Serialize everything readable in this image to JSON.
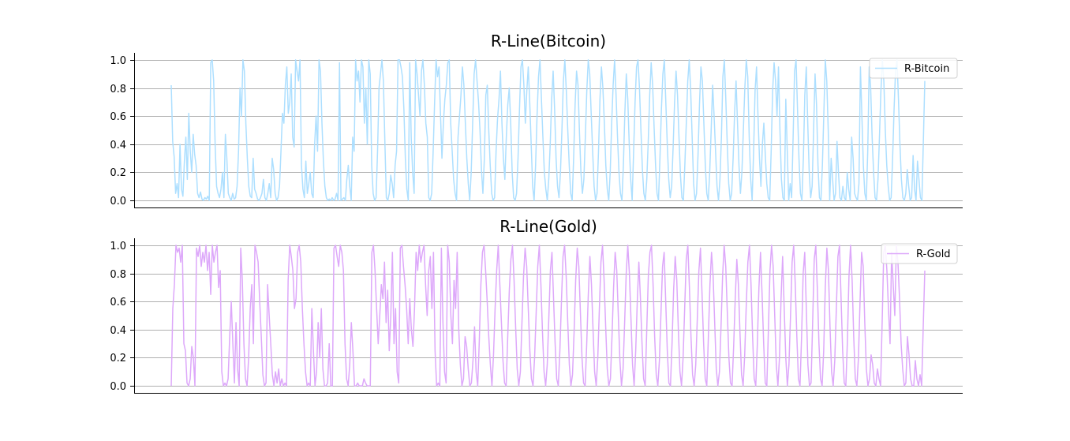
{
  "colors": {
    "bitcoin": "#ADDFFF",
    "gold": "#DDA8FA",
    "grid": "#b0b0b0"
  },
  "chart_data": [
    {
      "type": "line",
      "title": "R-Line(Bitcoin)",
      "xlabel": "",
      "ylabel": "",
      "ylim": [
        -0.05,
        1.05
      ],
      "yticks": [
        "0.0",
        "0.2",
        "0.4",
        "0.6",
        "0.8",
        "1.0"
      ],
      "grid": "horizontal",
      "legend_position": "top-right",
      "series": [
        {
          "name": "R-Bitcoin",
          "color": "#ADDFFF",
          "values": [
            0.82,
            0.42,
            0.31,
            0.05,
            0.12,
            0.02,
            0.4,
            0.08,
            0.03,
            0.28,
            0.45,
            0.15,
            0.62,
            0.35,
            0.2,
            0.47,
            0.33,
            0.25,
            0.05,
            0.02,
            0.06,
            0.01,
            0.0,
            0.02,
            0.01,
            0.03,
            0.0,
            0.98,
            1.0,
            0.85,
            0.4,
            0.1,
            0.05,
            0.02,
            0.08,
            0.2,
            0.02,
            0.47,
            0.3,
            0.05,
            0.02,
            0.0,
            0.05,
            0.01,
            0.02,
            0.1,
            0.35,
            0.8,
            0.6,
            1.0,
            0.92,
            0.55,
            0.3,
            0.1,
            0.03,
            0.02,
            0.3,
            0.08,
            0.05,
            0.01,
            0.0,
            0.02,
            0.05,
            0.15,
            0.02,
            0.0,
            0.05,
            0.12,
            0.02,
            0.3,
            0.22,
            0.05,
            0.0,
            0.02,
            0.1,
            0.35,
            0.62,
            0.55,
            0.82,
            0.95,
            0.62,
            0.7,
            0.9,
            0.45,
            0.38,
            1.0,
            0.92,
            0.85,
            1.0,
            0.25,
            0.08,
            0.02,
            0.28,
            0.05,
            0.12,
            0.2,
            0.05,
            0.02,
            0.4,
            0.6,
            0.35,
            1.0,
            0.92,
            0.55,
            0.28,
            0.1,
            0.02,
            0.0,
            0.01,
            0.0,
            0.02,
            0.0,
            0.01,
            0.05,
            0.0,
            0.98,
            0.0,
            0.01,
            0.02,
            0.0,
            0.15,
            0.25,
            0.1,
            0.0,
            0.45,
            0.35,
            1.0,
            0.85,
            0.92,
            0.7,
            1.0,
            0.95,
            0.55,
            0.8,
            0.4,
            1.0,
            0.9,
            0.25,
            0.05,
            0.0,
            0.02,
            0.35,
            0.8,
            0.9,
            1.0,
            0.85,
            0.42,
            0.02,
            0.0,
            0.05,
            0.18,
            0.12,
            0.02,
            0.25,
            0.35,
            1.0,
            1.0,
            0.95,
            0.88,
            0.65,
            0.3,
            0.08,
            0.0,
            0.98,
            0.45,
            0.2,
            0.05,
            1.0,
            0.9,
            0.75,
            0.6,
            0.92,
            1.0,
            0.82,
            0.55,
            0.45,
            0.02,
            0.0,
            0.05,
            0.35,
            0.7,
            1.0,
            0.88,
            0.95,
            0.62,
            0.3,
            0.55,
            0.72,
            0.82,
            0.98,
            1.0,
            0.55,
            0.35,
            0.15,
            0.05,
            0.0,
            0.45,
            0.6,
            0.75,
            0.95,
            0.82,
            0.55,
            0.3,
            0.12,
            0.0,
            0.2,
            0.55,
            0.9,
            1.0,
            0.85,
            0.7,
            0.5,
            0.22,
            0.05,
            0.3,
            0.75,
            0.82,
            0.5,
            0.25,
            0.05,
            0.0,
            0.02,
            0.35,
            0.58,
            0.72,
            0.92,
            0.55,
            0.3,
            0.15,
            0.45,
            0.68,
            0.8,
            0.55,
            0.2,
            0.02,
            0.0,
            0.05,
            0.3,
            0.65,
            0.95,
            1.0,
            0.82,
            0.55,
            0.78,
            0.95,
            0.7,
            0.4,
            0.1,
            0.0,
            0.25,
            0.6,
            0.88,
            1.0,
            0.72,
            0.45,
            0.2,
            0.08,
            0.0,
            0.15,
            0.4,
            0.72,
            0.92,
            0.65,
            0.3,
            0.1,
            0.02,
            0.2,
            0.5,
            0.85,
            1.0,
            0.78,
            0.5,
            0.25,
            0.05,
            0.0,
            0.3,
            0.68,
            0.92,
            0.82,
            0.48,
            0.2,
            0.05,
            0.15,
            0.45,
            0.78,
            1.0,
            0.9,
            0.62,
            0.35,
            0.1,
            0.0,
            0.05,
            0.35,
            0.72,
            0.95,
            0.8,
            0.55,
            0.25,
            0.08,
            0.0,
            0.2,
            0.55,
            0.82,
            1.0,
            0.75,
            0.45,
            0.2,
            0.05,
            0.0,
            0.25,
            0.62,
            0.9,
            0.72,
            0.4,
            0.15,
            0.0,
            0.35,
            0.7,
            0.95,
            1.0,
            0.8,
            0.5,
            0.22,
            0.05,
            0.0,
            0.15,
            0.42,
            0.75,
            0.98,
            0.82,
            0.52,
            0.25,
            0.05,
            0.0,
            0.3,
            0.65,
            0.9,
            1.0,
            0.7,
            0.4,
            0.15,
            0.02,
            0.1,
            0.38,
            0.7,
            0.92,
            0.75,
            0.45,
            0.18,
            0.02,
            0.0,
            0.25,
            0.55,
            0.85,
            1.0,
            0.78,
            0.45,
            0.12,
            0.0,
            0.05,
            0.32,
            0.68,
            0.95,
            0.85,
            0.55,
            0.25,
            0.05,
            0.0,
            0.2,
            0.5,
            0.82,
            0.6,
            0.35,
            0.1,
            0.0,
            0.15,
            0.45,
            0.88,
            1.0,
            0.72,
            0.4,
            0.12,
            0.0,
            0.05,
            0.3,
            0.62,
            0.85,
            0.55,
            0.25,
            0.05,
            0.2,
            0.5,
            0.8,
            1.0,
            0.88,
            0.45,
            0.15,
            0.0,
            0.35,
            0.78,
            0.95,
            0.6,
            0.3,
            0.1,
            0.4,
            0.55,
            0.32,
            0.12,
            0.02,
            0.0,
            0.35,
            0.78,
            0.98,
            0.85,
            0.6,
            0.95,
            0.5,
            0.15,
            0.02,
            0.0,
            0.72,
            0.35,
            0.0,
            0.12,
            0.02,
            0.45,
            0.92,
            1.0,
            0.65,
            0.3,
            0.05,
            0.0,
            0.3,
            0.75,
            0.95,
            0.55,
            0.2,
            0.02,
            0.1,
            0.5,
            0.9,
            0.68,
            0.25,
            0.02,
            0.0,
            0.25,
            0.62,
            1.0,
            0.85,
            0.5,
            0.0,
            0.3,
            0.15,
            0.0,
            0.05,
            0.42,
            0.2,
            0.02,
            0.0,
            0.1,
            0.02,
            0.0,
            0.2,
            0.08,
            0.0,
            0.45,
            0.3,
            0.05,
            0.02,
            0.0,
            0.12,
            0.95,
            0.6,
            0.25,
            0.05,
            0.0,
            0.35,
            0.95,
            0.8,
            0.45,
            0.2,
            0.02,
            0.0,
            0.15,
            0.45,
            0.78,
            1.0,
            0.85,
            0.5,
            0.25,
            0.1,
            0.0,
            0.02,
            0.3,
            0.65,
            0.92,
            1.0,
            0.72,
            0.4,
            0.15,
            0.02,
            0.0,
            0.05,
            0.22,
            0.1,
            0.0,
            0.02,
            0.32,
            0.08,
            0.0,
            0.28,
            0.15,
            0.02,
            0.0,
            0.42,
            0.85
          ]
        }
      ]
    },
    {
      "type": "line",
      "title": "R-Line(Gold)",
      "xlabel": "",
      "ylabel": "",
      "ylim": [
        -0.05,
        1.05
      ],
      "yticks": [
        "0.0",
        "0.2",
        "0.4",
        "0.6",
        "0.8",
        "1.0"
      ],
      "grid": "horizontal",
      "legend_position": "top-right",
      "series": [
        {
          "name": "R-Gold",
          "color": "#DDA8FA",
          "values": [
            0.0,
            0.55,
            0.72,
            1.0,
            0.95,
            0.98,
            0.88,
            1.0,
            0.3,
            0.25,
            0.02,
            0.0,
            0.05,
            0.28,
            0.2,
            0.0,
            0.98,
            0.92,
            1.0,
            0.85,
            0.95,
            0.88,
            1.0,
            0.82,
            0.95,
            0.65,
            1.0,
            0.88,
            0.95,
            1.0,
            0.7,
            0.82,
            0.1,
            0.0,
            0.02,
            0.0,
            0.05,
            0.35,
            0.6,
            0.3,
            0.02,
            0.45,
            0.12,
            0.0,
            0.98,
            0.75,
            0.3,
            0.05,
            0.0,
            0.2,
            0.55,
            0.72,
            0.3,
            1.0,
            0.95,
            0.88,
            0.6,
            0.35,
            0.08,
            0.0,
            0.02,
            0.72,
            0.5,
            0.3,
            0.08,
            0.0,
            0.1,
            0.02,
            0.12,
            0.0,
            0.05,
            0.0,
            0.02,
            0.0,
            0.75,
            1.0,
            0.92,
            0.82,
            0.55,
            0.62,
            0.95,
            1.0,
            0.88,
            0.55,
            0.3,
            0.1,
            0.0,
            0.02,
            0.0,
            0.55,
            0.25,
            0.0,
            0.1,
            0.45,
            0.2,
            0.55,
            0.12,
            0.0,
            0.0,
            0.02,
            0.3,
            0.0,
            0.0,
            0.98,
            1.0,
            0.92,
            0.85,
            1.0,
            0.95,
            0.82,
            0.3,
            0.05,
            0.0,
            0.15,
            0.45,
            0.25,
            0.0,
            0.0,
            0.02,
            0.0,
            0.0,
            0.0,
            0.05,
            0.02,
            0.0,
            0.0,
            0.0,
            0.95,
            1.0,
            0.82,
            0.55,
            0.3,
            0.5,
            0.72,
            0.62,
            0.88,
            0.45,
            0.68,
            0.25,
            0.5,
            0.95,
            0.3,
            0.55,
            0.1,
            0.02,
            0.98,
            1.0,
            0.85,
            0.72,
            0.55,
            0.3,
            0.62,
            0.4,
            0.28,
            0.55,
            0.95,
            0.82,
            1.0,
            0.88,
            0.95,
            1.0,
            0.72,
            0.5,
            0.82,
            0.92,
            0.55,
            0.95,
            0.25,
            0.0,
            0.02,
            0.0,
            0.98,
            0.45,
            0.1,
            0.02,
            1.0,
            0.88,
            0.5,
            0.3,
            0.75,
            0.55,
            0.95,
            0.4,
            0.15,
            0.0,
            0.05,
            0.35,
            0.28,
            0.12,
            0.0,
            0.02,
            0.18,
            0.42,
            0.1,
            0.0,
            0.32,
            0.72,
            0.95,
            1.0,
            0.82,
            0.6,
            0.35,
            0.15,
            0.0,
            0.22,
            0.55,
            0.82,
            1.0,
            0.72,
            0.45,
            0.18,
            0.02,
            0.0,
            0.35,
            0.68,
            0.9,
            1.0,
            0.75,
            0.42,
            0.12,
            0.0,
            0.1,
            0.45,
            0.78,
            0.98,
            0.85,
            0.55,
            0.25,
            0.05,
            0.0,
            0.2,
            0.52,
            0.85,
            1.0,
            0.72,
            0.38,
            0.1,
            0.0,
            0.15,
            0.48,
            0.82,
            0.95,
            0.62,
            0.3,
            0.05,
            0.0,
            0.25,
            0.6,
            0.92,
            1.0,
            0.78,
            0.45,
            0.15,
            0.0,
            0.08,
            0.38,
            0.75,
            0.98,
            0.85,
            0.52,
            0.2,
            0.02,
            0.0,
            0.3,
            0.65,
            0.92,
            0.72,
            0.4,
            0.1,
            0.0,
            0.2,
            0.55,
            0.88,
            1.0,
            0.75,
            0.42,
            0.12,
            0.0,
            0.05,
            0.35,
            0.7,
            0.95,
            0.82,
            0.5,
            0.18,
            0.0,
            0.12,
            0.45,
            0.8,
            1.0,
            0.8,
            0.48,
            0.15,
            0.0,
            0.25,
            0.6,
            0.88,
            0.62,
            0.3,
            0.05,
            0.0,
            0.4,
            0.78,
            0.95,
            1.0,
            0.72,
            0.35,
            0.08,
            0.0,
            0.18,
            0.52,
            0.85,
            0.95,
            0.6,
            0.25,
            0.02,
            0.0,
            0.3,
            0.68,
            0.92,
            0.75,
            0.4,
            0.1,
            0.0,
            0.2,
            0.55,
            0.9,
            1.0,
            0.7,
            0.35,
            0.08,
            0.0,
            0.15,
            0.48,
            0.82,
            0.98,
            0.65,
            0.3,
            0.05,
            0.0,
            0.35,
            0.72,
            0.95,
            0.78,
            0.45,
            0.12,
            0.0,
            0.1,
            0.42,
            0.78,
            1.0,
            0.85,
            0.52,
            0.2,
            0.02,
            0.0,
            0.28,
            0.62,
            0.9,
            0.72,
            0.38,
            0.08,
            0.0,
            0.22,
            0.58,
            0.88,
            1.0,
            0.72,
            0.35,
            0.05,
            0.0,
            0.3,
            0.7,
            0.95,
            0.65,
            0.3,
            0.02,
            0.0,
            0.4,
            0.82,
            1.0,
            0.85,
            0.5,
            0.15,
            0.0,
            0.2,
            0.62,
            0.92,
            0.55,
            0.2,
            0.0,
            0.15,
            0.5,
            0.88,
            1.0,
            0.72,
            0.35,
            0.05,
            0.0,
            0.35,
            0.8,
            0.95,
            0.55,
            0.15,
            0.0,
            0.02,
            0.45,
            0.9,
            1.0,
            0.68,
            0.3,
            0.05,
            0.0,
            0.25,
            0.7,
            0.98,
            0.82,
            0.42,
            0.1,
            0.0,
            0.18,
            0.55,
            0.92,
            1.0,
            0.62,
            0.25,
            0.02,
            0.0,
            0.32,
            0.78,
            1.0,
            0.75,
            0.35,
            0.05,
            0.0,
            0.2,
            0.6,
            0.95,
            0.85,
            0.45,
            0.12,
            0.0,
            0.05,
            0.22,
            0.15,
            0.02,
            0.0,
            0.12,
            0.05,
            0.0,
            0.45,
            0.95,
            1.0,
            0.82,
            0.55,
            0.3,
            0.95,
            0.72,
            0.5,
            1.0,
            0.88,
            0.62,
            0.3,
            0.12,
            0.0,
            0.02,
            0.35,
            0.22,
            0.05,
            0.0,
            0.0,
            0.18,
            0.05,
            0.0,
            0.08,
            0.0,
            0.42,
            0.82
          ]
        }
      ]
    }
  ]
}
